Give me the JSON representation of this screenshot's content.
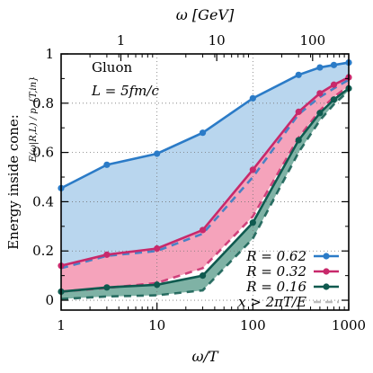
{
  "chart_data": {
    "type": "line",
    "x_scale": "log",
    "xlim": [
      1,
      1000
    ],
    "ylim": [
      -0.04,
      1.0
    ],
    "xlabel": "ω/T",
    "ylabel_line1": "Energy inside cone:",
    "ylabel_line2": "E(ω|R,L) / p_{T,in}",
    "top_axis_label": "ω [GeV]",
    "top_ticks": [
      {
        "label": "1",
        "x": 4.2
      },
      {
        "label": "10",
        "x": 42
      },
      {
        "label": "100",
        "x": 420
      }
    ],
    "x_ticks": [
      {
        "label": "1",
        "x": 1
      },
      {
        "label": "10",
        "x": 10
      },
      {
        "label": "100",
        "x": 100
      },
      {
        "label": "1000",
        "x": 1000
      }
    ],
    "y_ticks": [
      {
        "label": "0",
        "y": 0
      },
      {
        "label": "0.2",
        "y": 0.2
      },
      {
        "label": "0.4",
        "y": 0.4
      },
      {
        "label": "0.6",
        "y": 0.6
      },
      {
        "label": "0.8",
        "y": 0.8
      },
      {
        "label": "1",
        "y": 1
      }
    ],
    "annotations": {
      "particle": "Gluon",
      "length": "L = 5fm/c"
    },
    "grid": true,
    "legend_position": "bottom-right",
    "series": [
      {
        "name": "R = 0.62",
        "color": "#2b7bc7",
        "fill": "#b9d6ee",
        "x": [
          1,
          3,
          10,
          30,
          100,
          300,
          500,
          700,
          1000
        ],
        "upper": [
          0.455,
          0.55,
          0.595,
          0.68,
          0.82,
          0.915,
          0.945,
          0.955,
          0.965
        ],
        "lower": [
          0.13,
          0.18,
          0.2,
          0.27,
          0.5,
          0.755,
          0.825,
          0.86,
          0.895
        ]
      },
      {
        "name": "R = 0.32",
        "color": "#c8296b",
        "fill": "#f5a3bb",
        "x": [
          1,
          3,
          10,
          30,
          100,
          300,
          500,
          700,
          1000
        ],
        "upper": [
          0.14,
          0.185,
          0.21,
          0.285,
          0.53,
          0.765,
          0.84,
          0.875,
          0.905
        ],
        "lower": [
          0.035,
          0.05,
          0.07,
          0.13,
          0.34,
          0.66,
          0.77,
          0.825,
          0.87
        ]
      },
      {
        "name": "R = 0.16",
        "color": "#0f5a4f",
        "fill": "#7fb2a5",
        "x": [
          1,
          3,
          10,
          30,
          100,
          300,
          500,
          700,
          1000
        ],
        "upper": [
          0.035,
          0.052,
          0.063,
          0.1,
          0.315,
          0.65,
          0.76,
          0.815,
          0.86
        ],
        "lower": [
          0.005,
          0.015,
          0.02,
          0.04,
          0.25,
          0.6,
          0.73,
          0.795,
          0.85
        ]
      }
    ],
    "dashed_legend": {
      "label": "x > 2πT/E",
      "color": "#bbbbbb"
    }
  }
}
